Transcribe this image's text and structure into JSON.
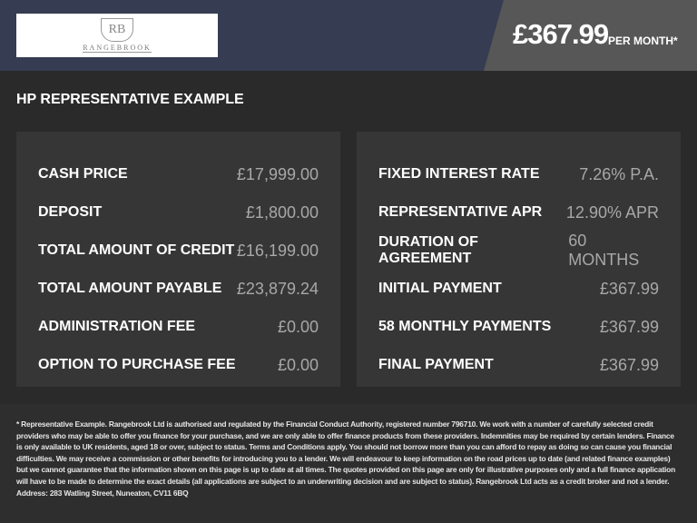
{
  "header": {
    "logo_text": "RANGEBROOK",
    "logo_monogram": "RB",
    "price": "£367.99",
    "per_month": "PER MONTH*"
  },
  "section_title": "HP REPRESENTATIVE EXAMPLE",
  "left_rows": [
    {
      "label": "CASH PRICE",
      "value": "£17,999.00"
    },
    {
      "label": "DEPOSIT",
      "value": "£1,800.00"
    },
    {
      "label": "TOTAL AMOUNT OF CREDIT",
      "value": "£16,199.00"
    },
    {
      "label": "TOTAL AMOUNT PAYABLE",
      "value": "£23,879.24"
    },
    {
      "label": "ADMINISTRATION FEE",
      "value": "£0.00"
    },
    {
      "label": "OPTION TO PURCHASE FEE",
      "value": "£0.00"
    }
  ],
  "right_rows": [
    {
      "label": "FIXED INTEREST RATE",
      "value": "7.26% P.A."
    },
    {
      "label": "REPRESENTATIVE APR",
      "value": "12.90% APR"
    },
    {
      "label": "DURATION OF AGREEMENT",
      "value": "60 MONTHS"
    },
    {
      "label": "INITIAL PAYMENT",
      "value": "£367.99"
    },
    {
      "label": "58 MONTHLY PAYMENTS",
      "value": "£367.99"
    },
    {
      "label": "FINAL PAYMENT",
      "value": "£367.99"
    }
  ],
  "footer": "* Representative Example. Rangebrook Ltd is authorised and regulated by the Financial Conduct Authority, registered number 796710. We work with a number of carefully selected credit providers who may be able to offer you finance for your purchase, and we are only able to offer finance products from these providers. Indemnities may be required by certain lenders. Finance is only available to UK residents, aged 18 or over, subject to status. Terms and Conditions apply. You should not borrow more than you can afford to repay as doing so can cause you financial difficulties. We may receive a commission or other benefits for introducing you to a lender. We will endeavour to keep information on the road prices up to date (and related finance examples) but we cannot guarantee that the information shown on this page is up to date at all times. The quotes provided on this page are only for illustrative purposes only and a full finance application will have to be made to determine the exact details (all applications are subject to an underwriting decision and are subject to status). Rangebrook Ltd acts as a credit broker and not a lender. Address: 283 Watling Street, Nuneaton, CV11 6BQ"
}
